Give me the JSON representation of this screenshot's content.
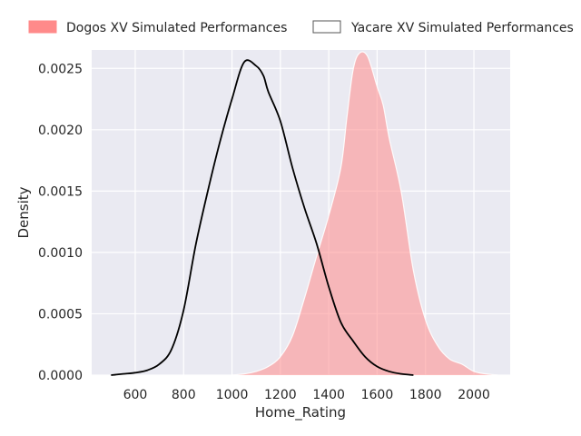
{
  "chart_data": {
    "type": "area",
    "title": "",
    "xlabel": "Home_Rating",
    "ylabel": "Density",
    "xlim": [
      420,
      2150
    ],
    "ylim": [
      0,
      0.00265
    ],
    "xticks": [
      600,
      800,
      1000,
      1200,
      1400,
      1600,
      1800,
      2000
    ],
    "yticks": [
      0.0,
      0.0005,
      0.001,
      0.0015,
      0.002,
      0.0025
    ],
    "xtick_labels": [
      "600",
      "800",
      "1000",
      "1200",
      "1400",
      "1600",
      "1800",
      "2000"
    ],
    "ytick_labels": [
      "0.0000",
      "0.0005",
      "0.0010",
      "0.0015",
      "0.0020",
      "0.0025"
    ],
    "grid": true,
    "legend_position": "top",
    "background": "#eaeaf2",
    "series": [
      {
        "name": "Dogos XV Simulated Performances",
        "style": "filled",
        "color": "#ff8a8a",
        "points": [
          [
            1000,
            0.0
          ],
          [
            1050,
            1e-05
          ],
          [
            1100,
            3e-05
          ],
          [
            1150,
            7e-05
          ],
          [
            1200,
            0.00015
          ],
          [
            1250,
            0.00032
          ],
          [
            1300,
            0.00063
          ],
          [
            1350,
            0.00097
          ],
          [
            1400,
            0.0013
          ],
          [
            1450,
            0.00169
          ],
          [
            1475,
            0.0021
          ],
          [
            1500,
            0.00248
          ],
          [
            1525,
            0.00262
          ],
          [
            1560,
            0.0026
          ],
          [
            1600,
            0.00235
          ],
          [
            1625,
            0.0022
          ],
          [
            1650,
            0.00193
          ],
          [
            1700,
            0.00149
          ],
          [
            1750,
            0.00085
          ],
          [
            1800,
            0.00045
          ],
          [
            1850,
            0.00024
          ],
          [
            1900,
            0.00013
          ],
          [
            1950,
            9e-05
          ],
          [
            2000,
            3e-05
          ],
          [
            2050,
            1e-05
          ],
          [
            2100,
            0.0
          ]
        ]
      },
      {
        "name": "Yacare XV Simulated Performances",
        "style": "line",
        "color": "#000000",
        "points": [
          [
            500,
            0.0
          ],
          [
            550,
            1e-05
          ],
          [
            600,
            2e-05
          ],
          [
            650,
            4e-05
          ],
          [
            700,
            9e-05
          ],
          [
            750,
            0.00021
          ],
          [
            800,
            0.00053
          ],
          [
            850,
            0.00106
          ],
          [
            900,
            0.0015
          ],
          [
            950,
            0.0019
          ],
          [
            1000,
            0.00225
          ],
          [
            1050,
            0.00255
          ],
          [
            1100,
            0.00252
          ],
          [
            1130,
            0.00244
          ],
          [
            1150,
            0.00231
          ],
          [
            1200,
            0.00207
          ],
          [
            1250,
            0.00169
          ],
          [
            1300,
            0.00136
          ],
          [
            1350,
            0.00107
          ],
          [
            1400,
            0.00072
          ],
          [
            1450,
            0.00043
          ],
          [
            1500,
            0.00028
          ],
          [
            1550,
            0.00015
          ],
          [
            1600,
            7e-05
          ],
          [
            1650,
            3e-05
          ],
          [
            1700,
            1e-05
          ],
          [
            1750,
            0.0
          ]
        ]
      }
    ]
  }
}
